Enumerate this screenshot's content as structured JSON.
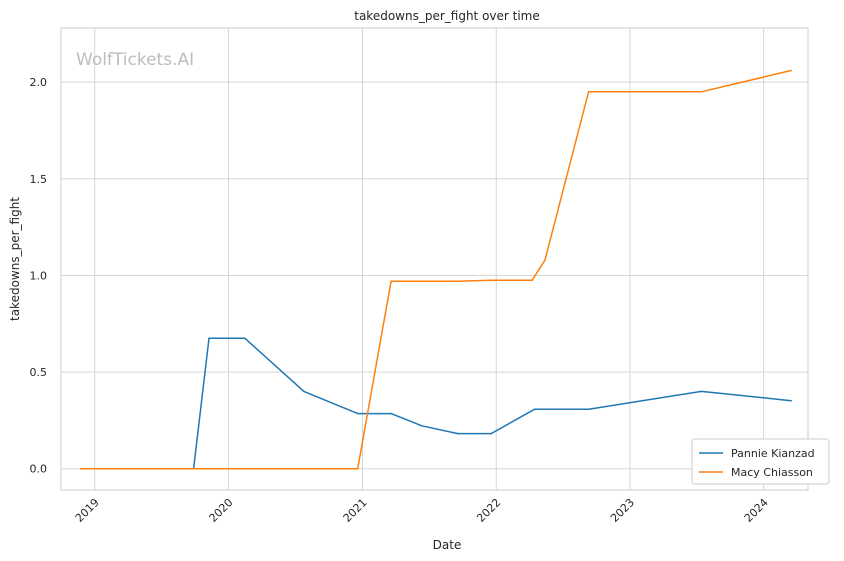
{
  "chart_data": {
    "type": "line",
    "title": "takedowns_per_fight over time",
    "xlabel": "Date",
    "ylabel": "takedowns_per_fight",
    "watermark": "WolfTickets.AI",
    "x_ticks": [
      "2019",
      "2020",
      "2021",
      "2022",
      "2023",
      "2024"
    ],
    "y_ticks": [
      "0.0",
      "0.5",
      "1.0",
      "1.5",
      "2.0"
    ],
    "xlim": [
      "2018-10-01",
      "2024-05-01"
    ],
    "ylim": [
      -0.11,
      2.28
    ],
    "grid": true,
    "legend_position": "lower-right",
    "series": [
      {
        "name": "Pannie Kianzad",
        "color": "#1f77b4",
        "points": [
          [
            "2018-11-24",
            0.0
          ],
          [
            "2019-09-28",
            0.0
          ],
          [
            "2019-11-09",
            0.675
          ],
          [
            "2020-02-15",
            0.675
          ],
          [
            "2020-07-25",
            0.4
          ],
          [
            "2020-12-19",
            0.285
          ],
          [
            "2021-03-20",
            0.285
          ],
          [
            "2021-06-12",
            0.222
          ],
          [
            "2021-09-18",
            0.182
          ],
          [
            "2021-12-18",
            0.182
          ],
          [
            "2022-04-16",
            0.308
          ],
          [
            "2022-09-10",
            0.308
          ],
          [
            "2023-07-15",
            0.4
          ],
          [
            "2024-03-16",
            0.352
          ]
        ]
      },
      {
        "name": "Macy Chiasson",
        "color": "#ff7f0e",
        "points": [
          [
            "2018-11-24",
            0.0
          ],
          [
            "2020-12-19",
            0.0
          ],
          [
            "2021-03-20",
            0.97
          ],
          [
            "2021-09-18",
            0.97
          ],
          [
            "2021-12-18",
            0.975
          ],
          [
            "2022-04-09",
            0.975
          ],
          [
            "2022-05-14",
            1.08
          ],
          [
            "2022-09-10",
            1.95
          ],
          [
            "2023-07-15",
            1.95
          ],
          [
            "2024-03-16",
            2.06
          ]
        ]
      }
    ]
  }
}
